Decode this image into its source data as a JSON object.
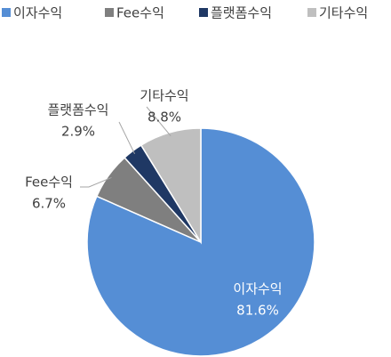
{
  "chart_data": {
    "type": "pie",
    "categories": [
      "이자수익",
      "Fee수익",
      "플랫폼수익",
      "기타수익"
    ],
    "values": [
      81.6,
      6.7,
      2.9,
      8.8
    ],
    "value_labels": [
      "81.6%",
      "6.7%",
      "2.9%",
      "8.8%"
    ],
    "colors": [
      "#558ed5",
      "#7f7f7f",
      "#1f3864",
      "#bfbfbf"
    ],
    "legend": "top"
  }
}
